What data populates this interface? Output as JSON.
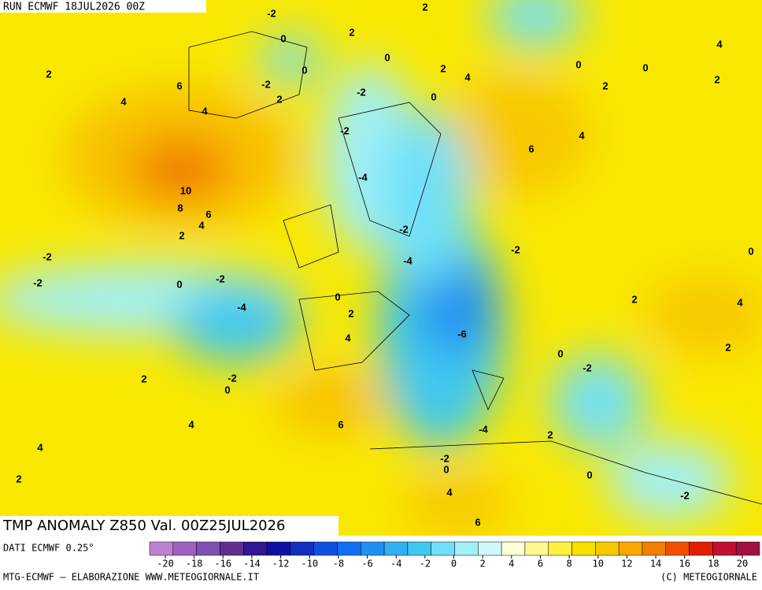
{
  "header": {
    "run": "RUN ECMWF 18JUL2026 00Z"
  },
  "map": {
    "title": "TMP ANOMALY Z850 Val. 00Z25JUL2026",
    "labels": [
      "-2",
      "2",
      "0",
      "2",
      "0",
      "0",
      "2",
      "6",
      "-2",
      "2",
      "4",
      "4",
      "-2",
      "0",
      "2",
      "4",
      "0",
      "0",
      "2",
      "4",
      "2",
      "-2",
      "6",
      "4",
      "-4",
      "10",
      "8",
      "6",
      "4",
      "2",
      "-2",
      "-2",
      "0",
      "-2",
      "-4",
      "-2",
      "-2",
      "0",
      "0",
      "2",
      "4",
      "-4",
      "2",
      "4",
      "-6",
      "2",
      "0",
      "-2",
      "-2",
      "2",
      "0",
      "6",
      "4",
      "-4",
      "2",
      "4",
      "-2",
      "0",
      "2",
      "0",
      "4",
      "-2",
      "6"
    ]
  },
  "footer": {
    "source": "DATI ECMWF 0.25°",
    "credit": "MTG-ECMWF – ELABORAZIONE WWW.METEOGIORNALE.IT",
    "copyright": "(C) METEOGIORNALE"
  },
  "colorbar": {
    "colors": [
      "#c080d0",
      "#a060c0",
      "#8050b0",
      "#603090",
      "#301890",
      "#1010a0",
      "#1030c0",
      "#1050e0",
      "#1070f0",
      "#2090f0",
      "#30b0f0",
      "#40c8f0",
      "#70e0f8",
      "#a0f0f8",
      "#d0f8f8",
      "#ffffd8",
      "#fff890",
      "#fff040",
      "#f8e000",
      "#f8c800",
      "#f8a800",
      "#f08000",
      "#f05000",
      "#e02000",
      "#c01030",
      "#a01040"
    ],
    "ticks": [
      -20,
      -18,
      -16,
      -14,
      -12,
      -10,
      -8,
      -6,
      -4,
      -2,
      0,
      2,
      4,
      6,
      8,
      10,
      12,
      14,
      16,
      18,
      20
    ]
  }
}
